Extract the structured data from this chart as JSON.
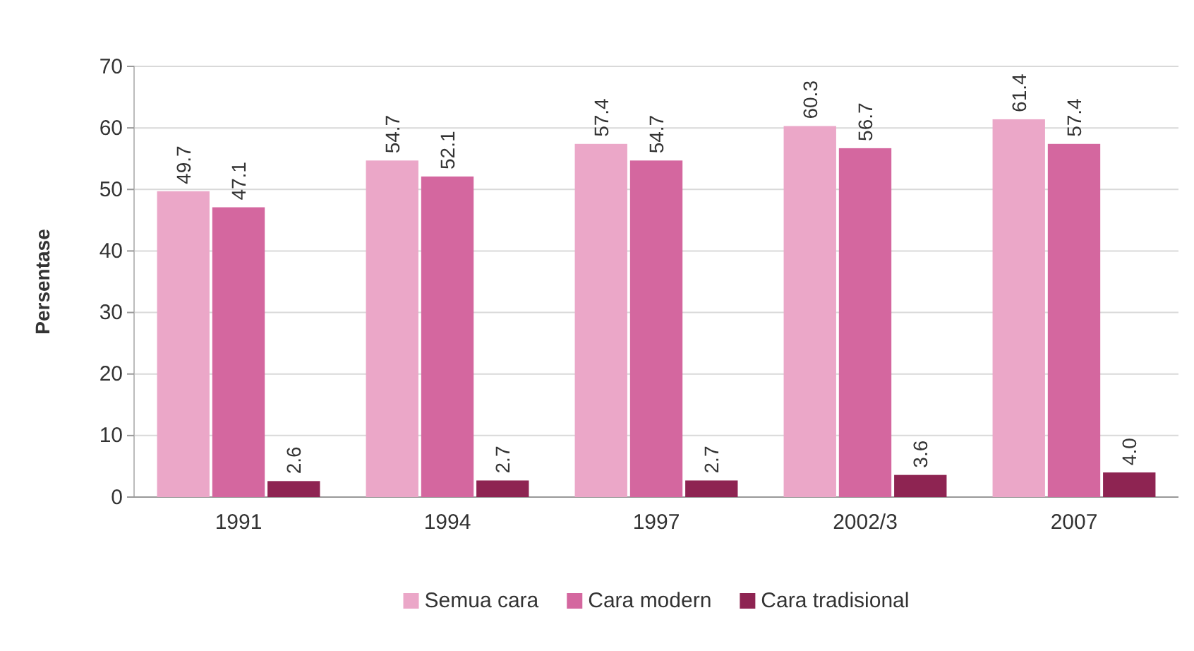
{
  "chart_data": {
    "type": "bar",
    "ylabel": "Persentase",
    "categories": [
      "1991",
      "1994",
      "1997",
      "2002/3",
      "2007"
    ],
    "series": [
      {
        "name": "Semua cara",
        "color": "#eba7c8",
        "values": [
          49.7,
          54.7,
          57.4,
          60.3,
          61.4
        ],
        "value_labels": [
          "49.7",
          "54.7",
          "57.4",
          "60.3",
          "61.4"
        ]
      },
      {
        "name": "Cara modern",
        "color": "#d4679f",
        "values": [
          47.1,
          52.1,
          54.7,
          56.7,
          57.4
        ],
        "value_labels": [
          "47.1",
          "52.1",
          "54.7",
          "56.7",
          "57.4"
        ]
      },
      {
        "name": "Cara tradisional",
        "color": "#8e2452",
        "values": [
          2.6,
          2.7,
          2.7,
          3.6,
          4.0
        ],
        "value_labels": [
          "2.6",
          "2.7",
          "2.7",
          "3.6",
          "4.0"
        ]
      }
    ],
    "ylim": [
      0,
      70
    ],
    "yticks": [
      0,
      10,
      20,
      30,
      40,
      50,
      60,
      70
    ],
    "grid": "y",
    "legend": "bottom"
  }
}
